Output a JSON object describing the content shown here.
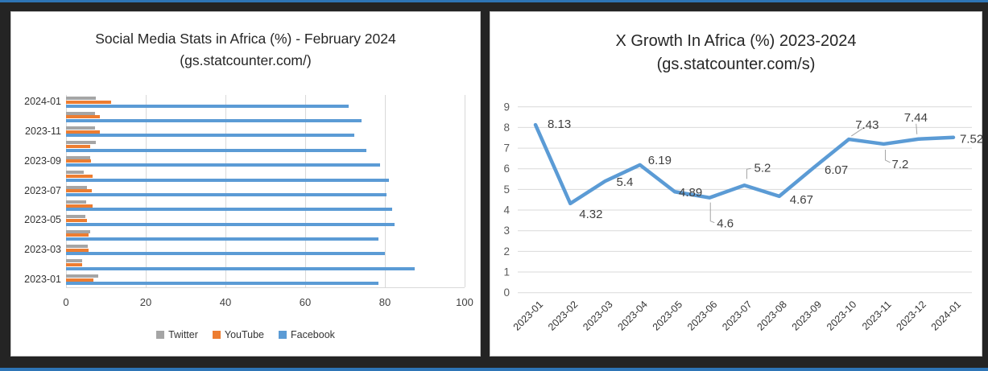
{
  "frame": {
    "accent_color": "#2e75b6",
    "background_color": "#242424"
  },
  "left_chart": {
    "title_line1": "Social Media Stats in Africa (%) - February 2024",
    "title_line2": "(gs.statcounter.com/)",
    "legend": [
      {
        "label": "Twitter",
        "color": "#a5a5a5"
      },
      {
        "label": "YouTube",
        "color": "#ed7d31"
      },
      {
        "label": "Facebook",
        "color": "#5b9bd5"
      }
    ],
    "x_ticks": [
      0,
      20,
      40,
      60,
      80,
      100
    ]
  },
  "right_chart": {
    "title_line1": "X Growth In Africa (%) 2023-2024",
    "title_line2": "(gs.statcounter.com/s)",
    "y_ticks": [
      0,
      1,
      2,
      3,
      4,
      5,
      6,
      7,
      8,
      9
    ]
  },
  "chart_data": [
    {
      "type": "bar",
      "orientation": "horizontal",
      "title": "Social Media Stats in Africa (%) - February 2024 (gs.statcounter.com/)",
      "categories": [
        "2023-01",
        "2023-02",
        "2023-03",
        "2023-04",
        "2023-05",
        "2023-06",
        "2023-07",
        "2023-08",
        "2023-09",
        "2023-10",
        "2023-11",
        "2023-12",
        "2024-01"
      ],
      "visible_category_labels": [
        "2023-01",
        "2023-03",
        "2023-05",
        "2023-07",
        "2023-09",
        "2023-11",
        "2024-01"
      ],
      "series": [
        {
          "name": "Twitter",
          "color": "#a5a5a5",
          "values": [
            8.1,
            4.0,
            5.5,
            6.0,
            4.9,
            5.0,
            5.2,
            4.5,
            6.0,
            7.5,
            7.3,
            7.3,
            7.5
          ]
        },
        {
          "name": "YouTube",
          "color": "#ed7d31",
          "values": [
            6.9,
            4.0,
            5.6,
            5.7,
            5.2,
            6.6,
            6.4,
            6.7,
            6.2,
            6.0,
            8.5,
            8.5,
            11.4
          ]
        },
        {
          "name": "Facebook",
          "color": "#5b9bd5",
          "values": [
            78.4,
            87.5,
            80.1,
            78.4,
            82.4,
            81.8,
            80.5,
            81.1,
            78.7,
            75.3,
            72.3,
            74.2,
            71.0
          ]
        }
      ],
      "xlim": [
        0,
        100
      ],
      "x_ticks": [
        0,
        20,
        40,
        60,
        80,
        100
      ],
      "grid": "vertical",
      "legend_position": "bottom"
    },
    {
      "type": "line",
      "title": "X Growth In Africa (%) 2023-2024 (gs.statcounter.com/s)",
      "x": [
        "2023-01",
        "2023-02",
        "2023-03",
        "2023-04",
        "2023-05",
        "2023-06",
        "2023-07",
        "2023-08",
        "2023-09",
        "2023-10",
        "2023-11",
        "2023-12",
        "2024-01"
      ],
      "values": [
        8.13,
        4.32,
        5.4,
        6.19,
        4.89,
        4.6,
        5.2,
        4.67,
        6.07,
        7.43,
        7.2,
        7.44,
        7.52
      ],
      "data_labels": [
        "8.13",
        "4.32",
        "5.4",
        "6.19",
        "4.89",
        "4.6",
        "5.2",
        "4.67",
        "6.07",
        "7.43",
        "7.2",
        "7.44",
        "7.52"
      ],
      "line_color": "#5b9bd5",
      "ylim": [
        0,
        9
      ],
      "y_ticks": [
        0,
        1,
        2,
        3,
        4,
        5,
        6,
        7,
        8,
        9
      ],
      "grid": "horizontal",
      "legend_position": "none"
    }
  ]
}
